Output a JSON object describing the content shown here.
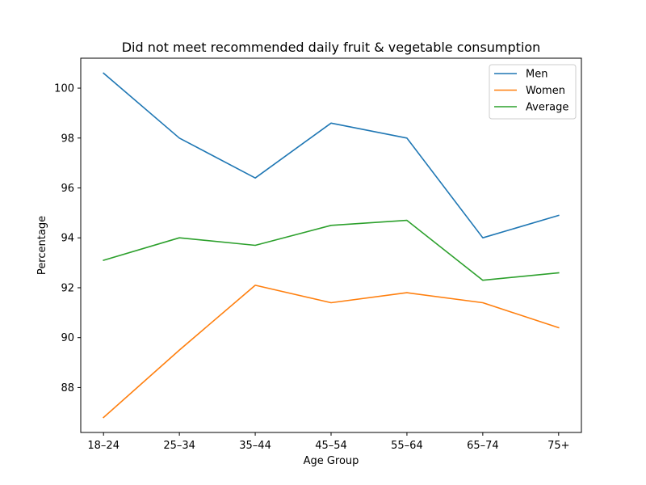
{
  "chart_data": {
    "type": "line",
    "title": "Did not meet recommended daily fruit & vegetable consumption",
    "xlabel": "Age Group",
    "ylabel": "Percentage",
    "categories": [
      "18–24",
      "25–34",
      "35–44",
      "45–54",
      "55–64",
      "65–74",
      "75+"
    ],
    "series": [
      {
        "name": "Men",
        "color": "#1f77b4",
        "values": [
          100.6,
          98.0,
          96.4,
          98.6,
          98.0,
          94.0,
          94.9
        ]
      },
      {
        "name": "Women",
        "color": "#ff7f0e",
        "values": [
          86.8,
          89.5,
          92.1,
          91.4,
          91.8,
          91.4,
          90.4
        ]
      },
      {
        "name": "Average",
        "color": "#2ca02c",
        "values": [
          93.1,
          94.0,
          93.7,
          94.5,
          94.7,
          92.3,
          92.6
        ]
      }
    ],
    "ylim": [
      86.2,
      101.2
    ],
    "yticks": [
      88,
      90,
      92,
      94,
      96,
      98,
      100
    ],
    "grid": false,
    "legend": "top-right"
  }
}
